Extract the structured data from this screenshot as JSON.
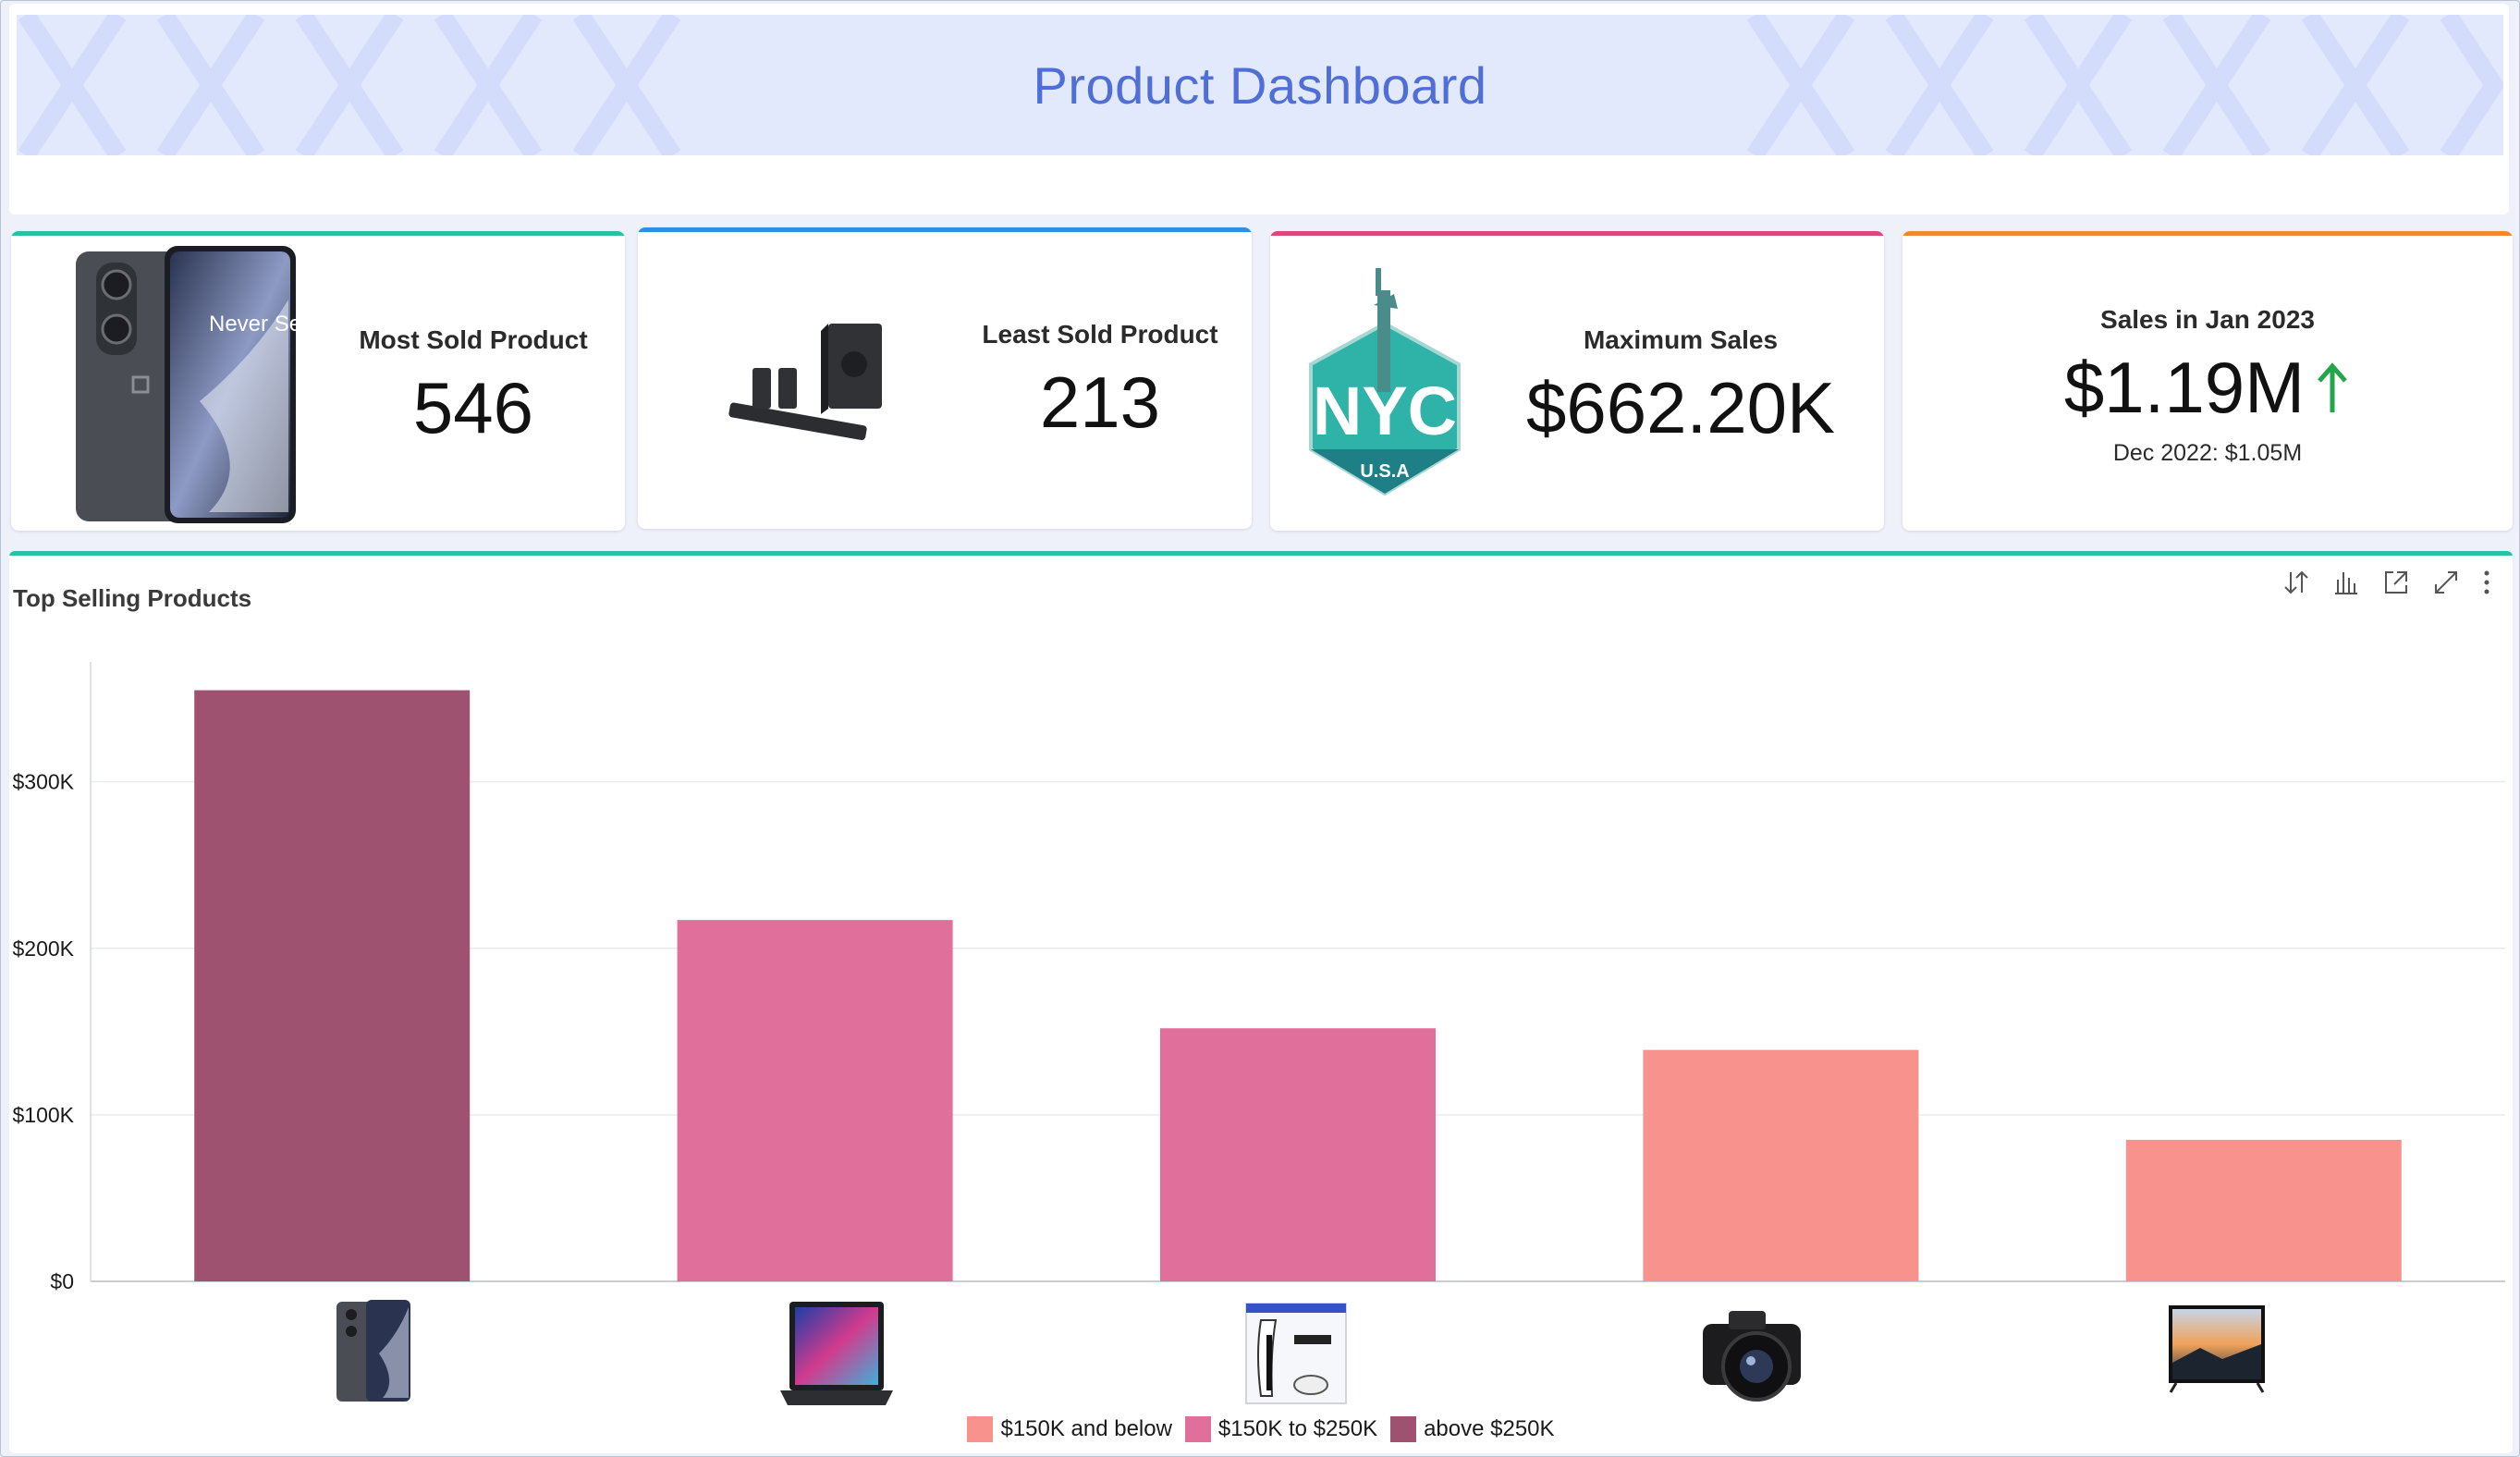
{
  "header": {
    "title": "Product Dashboard"
  },
  "kpis": [
    {
      "label": "Most Sold Product",
      "value": "546",
      "accent": "#26c2a5",
      "image": "smartphone-image"
    },
    {
      "label": "Least Sold Product",
      "value": "213",
      "accent": "#2f8fe0",
      "image": "soundbar-speaker-image"
    },
    {
      "label": "Maximum Sales",
      "value": "$662.20K",
      "accent": "#e0467a",
      "image": "nyc-statue-of-liberty-badge",
      "badge_text": "NYC",
      "badge_sub": "U.S.A"
    },
    {
      "label": "Sales in Jan 2023",
      "value": "$1.19M",
      "accent": "#f08a2c",
      "trend": "up",
      "trend_color": "#22a64a",
      "sub": "Dec 2022: $1.05M"
    }
  ],
  "phone_text": "Never Settle",
  "chart_panel": {
    "title": "Top Selling Products",
    "accent": "#26c2a5",
    "toolbar": [
      "sort-icon",
      "chart-type-icon",
      "open-external-icon",
      "expand-icon",
      "more-options-icon"
    ]
  },
  "chart_data": {
    "type": "bar",
    "title": "Top Selling Products",
    "xlabel": "",
    "ylabel": "",
    "categories": [
      "smartphone",
      "laptop",
      "game-console",
      "camera",
      "television"
    ],
    "values": [
      355000,
      217000,
      152000,
      139000,
      85000
    ],
    "colors": [
      "#9e5270",
      "#e06f9c",
      "#e06f9c",
      "#f8928c",
      "#f8928c"
    ],
    "ylim": [
      0,
      372000
    ],
    "yticks": [
      0,
      100000,
      200000,
      300000
    ],
    "ytick_labels": [
      "$0",
      "$100K",
      "$200K",
      "$300K"
    ],
    "grid": true,
    "legend_position": "bottom",
    "legend": [
      {
        "name": "$150K and below",
        "color": "#f8928c"
      },
      {
        "name": "$150K to $250K",
        "color": "#e06f9c"
      },
      {
        "name": "above $250K",
        "color": "#9e5270"
      }
    ]
  }
}
